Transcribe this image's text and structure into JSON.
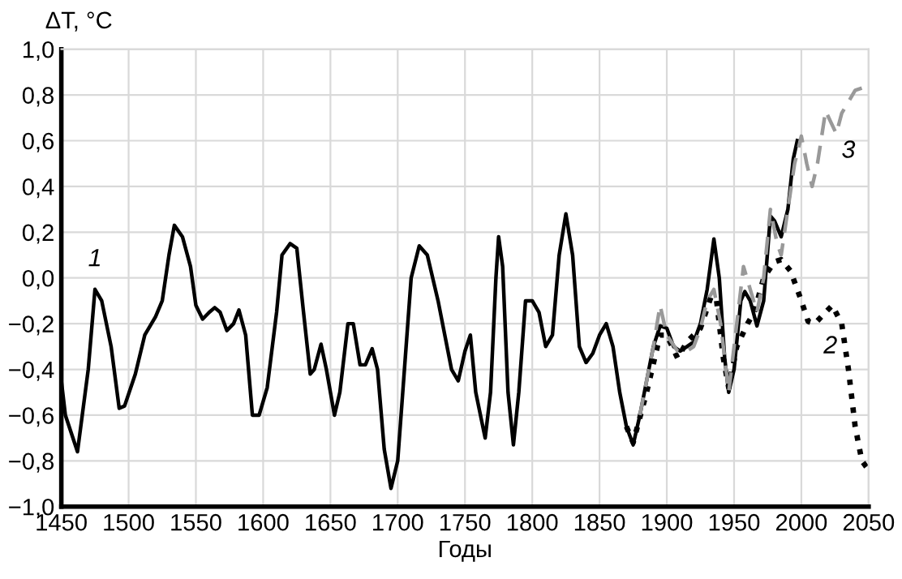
{
  "chart_data": {
    "type": "line",
    "xlabel": "Годы",
    "ylabel": "ΔT, °C",
    "xlim": [
      1450,
      2050
    ],
    "xticks": [
      1450,
      1500,
      1550,
      1600,
      1650,
      1700,
      1750,
      1800,
      1850,
      1900,
      1950,
      2000,
      2050
    ],
    "ylim": [
      -1.0,
      1.0
    ],
    "yticks": [
      {
        "value": -1.0,
        "label": "−1,0"
      },
      {
        "value": -0.8,
        "label": "−0,8"
      },
      {
        "value": -0.6,
        "label": "−0,6"
      },
      {
        "value": -0.4,
        "label": "−0,4"
      },
      {
        "value": -0.2,
        "label": "−0,2"
      },
      {
        "value": 0.0,
        "label": "0,0"
      },
      {
        "value": 0.2,
        "label": "0,2"
      },
      {
        "value": 0.4,
        "label": "0,4"
      },
      {
        "value": 0.6,
        "label": "0,6"
      },
      {
        "value": 0.8,
        "label": "0,8"
      },
      {
        "value": 1.0,
        "label": "1,0"
      }
    ],
    "grid": true,
    "marker": "none",
    "series": [
      {
        "name": "1",
        "color": "#000000",
        "line_style": "solid",
        "x": [
          1450,
          1453,
          1462,
          1470,
          1475,
          1480,
          1487,
          1493,
          1497,
          1505,
          1512,
          1520,
          1525,
          1530,
          1534,
          1540,
          1546,
          1550,
          1555,
          1560,
          1564,
          1568,
          1573,
          1578,
          1582,
          1587,
          1592,
          1597,
          1603,
          1610,
          1614,
          1620,
          1625,
          1630,
          1635,
          1638,
          1643,
          1647,
          1653,
          1657,
          1663,
          1667,
          1672,
          1676,
          1681,
          1685,
          1690,
          1695,
          1700,
          1705,
          1710,
          1716,
          1722,
          1730,
          1740,
          1745,
          1750,
          1754,
          1758,
          1765,
          1769,
          1773,
          1775,
          1778,
          1782,
          1786,
          1790,
          1795,
          1800,
          1805,
          1810,
          1815,
          1820,
          1825,
          1830,
          1835,
          1840,
          1845,
          1850,
          1855,
          1860,
          1865,
          1870,
          1875,
          1880,
          1885,
          1890,
          1895,
          1900,
          1905,
          1910,
          1915,
          1920,
          1925,
          1930,
          1935,
          1939,
          1943,
          1946,
          1950,
          1955,
          1958,
          1962,
          1967,
          1972,
          1977,
          1980,
          1985,
          1990,
          1994,
          1997
        ],
        "values": [
          -0.45,
          -0.6,
          -0.76,
          -0.4,
          -0.05,
          -0.1,
          -0.3,
          -0.57,
          -0.56,
          -0.42,
          -0.25,
          -0.17,
          -0.1,
          0.1,
          0.23,
          0.18,
          0.05,
          -0.12,
          -0.18,
          -0.15,
          -0.13,
          -0.15,
          -0.23,
          -0.2,
          -0.14,
          -0.25,
          -0.6,
          -0.6,
          -0.48,
          -0.15,
          0.1,
          0.15,
          0.13,
          -0.15,
          -0.42,
          -0.4,
          -0.29,
          -0.4,
          -0.6,
          -0.5,
          -0.2,
          -0.2,
          -0.38,
          -0.38,
          -0.31,
          -0.4,
          -0.75,
          -0.92,
          -0.8,
          -0.4,
          0.0,
          0.14,
          0.1,
          -0.1,
          -0.4,
          -0.45,
          -0.32,
          -0.25,
          -0.5,
          -0.7,
          -0.5,
          0.0,
          0.18,
          0.05,
          -0.5,
          -0.73,
          -0.5,
          -0.1,
          -0.1,
          -0.15,
          -0.3,
          -0.25,
          0.1,
          0.28,
          0.1,
          -0.3,
          -0.37,
          -0.33,
          -0.25,
          -0.2,
          -0.3,
          -0.5,
          -0.65,
          -0.73,
          -0.6,
          -0.45,
          -0.3,
          -0.21,
          -0.22,
          -0.3,
          -0.32,
          -0.3,
          -0.28,
          -0.2,
          -0.05,
          0.17,
          0.0,
          -0.35,
          -0.5,
          -0.4,
          -0.1,
          -0.06,
          -0.1,
          -0.21,
          -0.1,
          0.27,
          0.25,
          0.18,
          0.3,
          0.52,
          0.6
        ]
      },
      {
        "name": "2",
        "color": "#000000",
        "line_style": "dotted",
        "x": [
          1870,
          1875,
          1885,
          1895,
          1900,
          1908,
          1915,
          1925,
          1933,
          1937,
          1942,
          1946,
          1952,
          1960,
          1965,
          1972,
          1980,
          1985,
          1992,
          2000,
          2005,
          2010,
          2018,
          2023,
          2030,
          2035,
          2040,
          2045,
          2050
        ],
        "values": [
          -0.65,
          -0.72,
          -0.5,
          -0.25,
          -0.25,
          -0.35,
          -0.28,
          -0.22,
          -0.08,
          -0.1,
          -0.35,
          -0.48,
          -0.3,
          -0.2,
          -0.15,
          0.0,
          0.07,
          0.08,
          0.03,
          -0.1,
          -0.19,
          -0.2,
          -0.15,
          -0.12,
          -0.2,
          -0.4,
          -0.65,
          -0.8,
          -0.84
        ]
      },
      {
        "name": "3",
        "color": "#999999",
        "line_style": "dashed",
        "x": [
          1880,
          1890,
          1895,
          1900,
          1908,
          1915,
          1920,
          1925,
          1930,
          1935,
          1940,
          1946,
          1952,
          1957,
          1962,
          1967,
          1972,
          1977,
          1982,
          1985,
          1990,
          1995,
          2000,
          2004,
          2008,
          2012,
          2018,
          2026,
          2030,
          2040,
          2050
        ],
        "values": [
          -0.6,
          -0.3,
          -0.12,
          -0.25,
          -0.32,
          -0.32,
          -0.3,
          -0.22,
          -0.1,
          -0.05,
          -0.2,
          -0.5,
          -0.2,
          0.05,
          -0.05,
          -0.15,
          0.0,
          0.3,
          0.15,
          0.1,
          0.3,
          0.5,
          0.62,
          0.5,
          0.4,
          0.5,
          0.73,
          0.63,
          0.72,
          0.82,
          0.84
        ]
      }
    ]
  }
}
